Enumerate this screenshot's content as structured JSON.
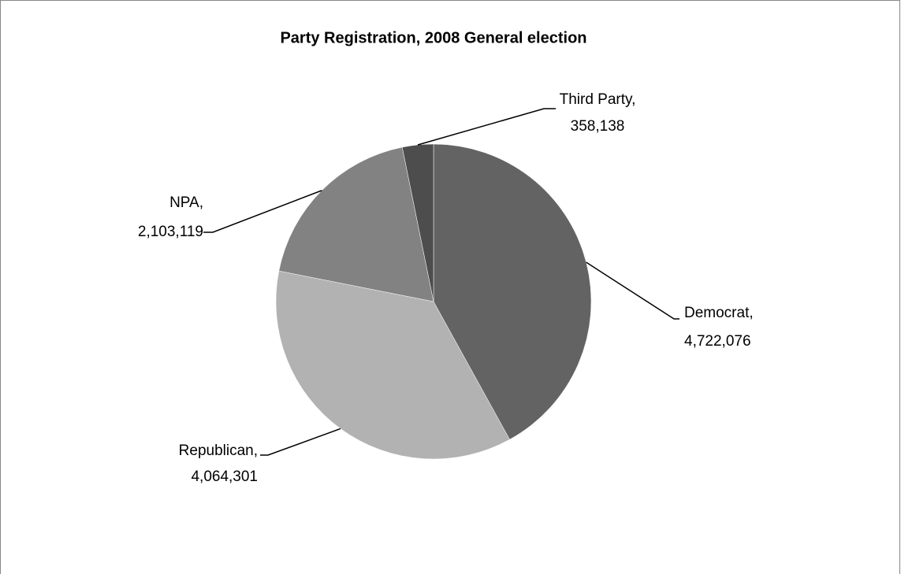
{
  "chart_data": {
    "type": "pie",
    "title": "Party Registration, 2008 General election",
    "categories": [
      "Democrat,",
      "Republican,",
      "NPA,",
      "Third Party,"
    ],
    "values": [
      4722076,
      4064301,
      2103119,
      358138
    ],
    "value_labels": [
      "4,722,076",
      "4,064,301",
      "2,103,119",
      "358,138"
    ],
    "colors": [
      "#636363",
      "#b2b2b2",
      "#828282",
      "#4d4d4d"
    ]
  }
}
